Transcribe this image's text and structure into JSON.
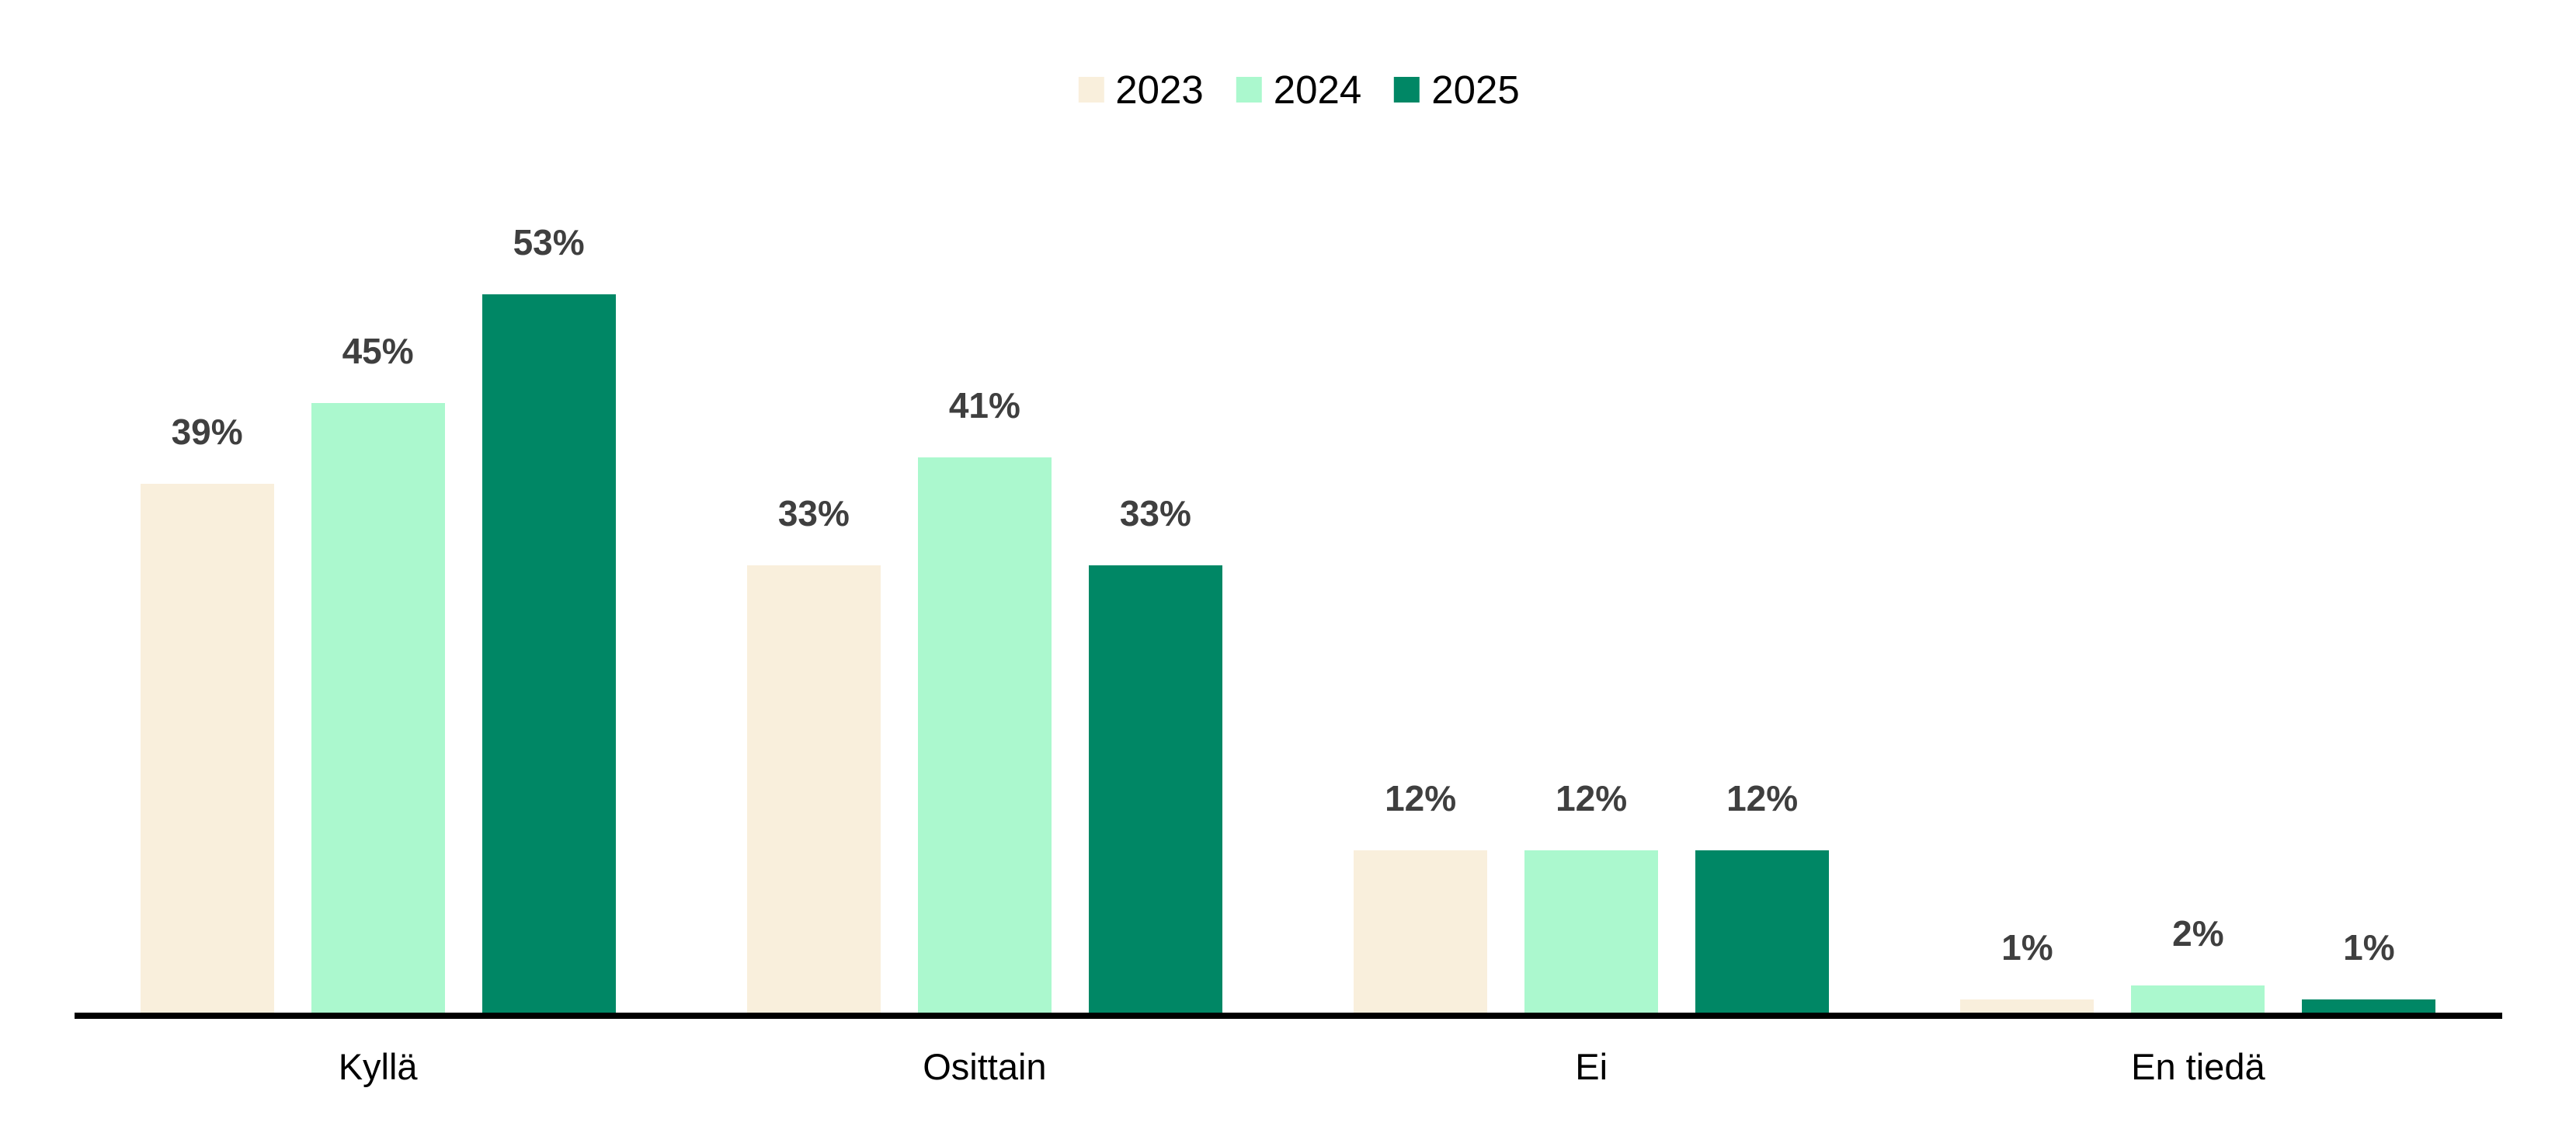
{
  "chart_data": {
    "type": "bar",
    "title": "",
    "categories": [
      "Kyllä",
      "Osittain",
      "Ei",
      "En tiedä"
    ],
    "series": [
      {
        "name": "2023",
        "color": "#F9EFDC",
        "values": [
          39,
          33,
          12,
          1
        ],
        "labels": [
          "39%",
          "33%",
          "12%",
          "1%"
        ]
      },
      {
        "name": "2024",
        "color": "#ABF8CE",
        "values": [
          45,
          41,
          12,
          2
        ],
        "labels": [
          "45%",
          "41%",
          "12%",
          "2%"
        ]
      },
      {
        "name": "2025",
        "color": "#008765",
        "values": [
          53,
          33,
          12,
          1
        ],
        "labels": [
          "53%",
          "33%",
          "12%",
          "1%"
        ]
      }
    ],
    "value_labels_shown": true,
    "legend_position": "top-center",
    "grid": false,
    "y_axis_visible": false,
    "ylim": [
      0,
      60
    ],
    "axis_line_color": "#000000",
    "value_label_color": "#3F3F3F",
    "category_label_color": "#000000",
    "legend_label_color": "#000000",
    "background_color": "#FFFFFF"
  }
}
